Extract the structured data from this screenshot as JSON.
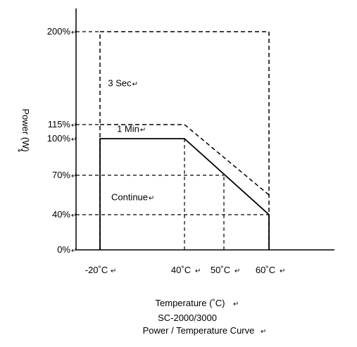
{
  "chart_data": {
    "type": "line",
    "ylabel": "Power (W)",
    "xlabel": "Temperature (˚C)",
    "subtitle": "SC-2000/3000",
    "title": "Power / Temperature Curve",
    "y_ticks": [
      {
        "value": 0,
        "label": "0%"
      },
      {
        "value": 40,
        "label": "40%"
      },
      {
        "value": 70,
        "label": "70%"
      },
      {
        "value": 100,
        "label": "100%"
      },
      {
        "value": 115,
        "label": "115%"
      },
      {
        "value": 200,
        "label": "200%"
      }
    ],
    "x_ticks": [
      {
        "value": -20,
        "label": "-20˚C"
      },
      {
        "value": 40,
        "label": "40˚C"
      },
      {
        "value": 50,
        "label": "50˚C"
      },
      {
        "value": 60,
        "label": "60˚C"
      }
    ],
    "series": [
      {
        "name": "1 Min",
        "style": "solid",
        "x": [
          -20,
          -20,
          40,
          60,
          60
        ],
        "y": [
          0,
          100,
          100,
          40,
          0
        ]
      },
      {
        "name": "3 Sec",
        "style": "dashed",
        "x": [
          -20,
          -20,
          60,
          60
        ],
        "y": [
          0,
          200,
          200,
          0
        ]
      },
      {
        "name": "",
        "style": "dashed",
        "x": [
          -20,
          40,
          60
        ],
        "y": [
          115,
          115,
          55
        ]
      }
    ],
    "reference_lines": [
      {
        "orientation": "horizontal",
        "y": 200,
        "x_from": -37,
        "x_to": -20
      },
      {
        "orientation": "horizontal",
        "y": 115,
        "x_from": -37,
        "x_to": -20
      },
      {
        "orientation": "horizontal",
        "y": 70,
        "x_from": -37,
        "x_to": 50
      },
      {
        "orientation": "horizontal",
        "y": 40,
        "x_from": -37,
        "x_to": 60
      },
      {
        "orientation": "vertical",
        "x": 40,
        "y_from": 0,
        "y_to": 100
      },
      {
        "orientation": "vertical",
        "x": 50,
        "y_from": 0,
        "y_to": 70
      }
    ],
    "region_labels": [
      {
        "text": "3 Sec",
        "x": -6,
        "y": 150
      },
      {
        "text": "1 Min",
        "x": 0,
        "y": 107
      },
      {
        "text": "Continue",
        "x": 1,
        "y": 51
      }
    ],
    "xlim": [
      -37,
      92
    ],
    "ylim": [
      0,
      215
    ],
    "grid": false,
    "legend": "none"
  },
  "colors": {
    "line": "#000000",
    "paragraph_mark": "#555555"
  }
}
